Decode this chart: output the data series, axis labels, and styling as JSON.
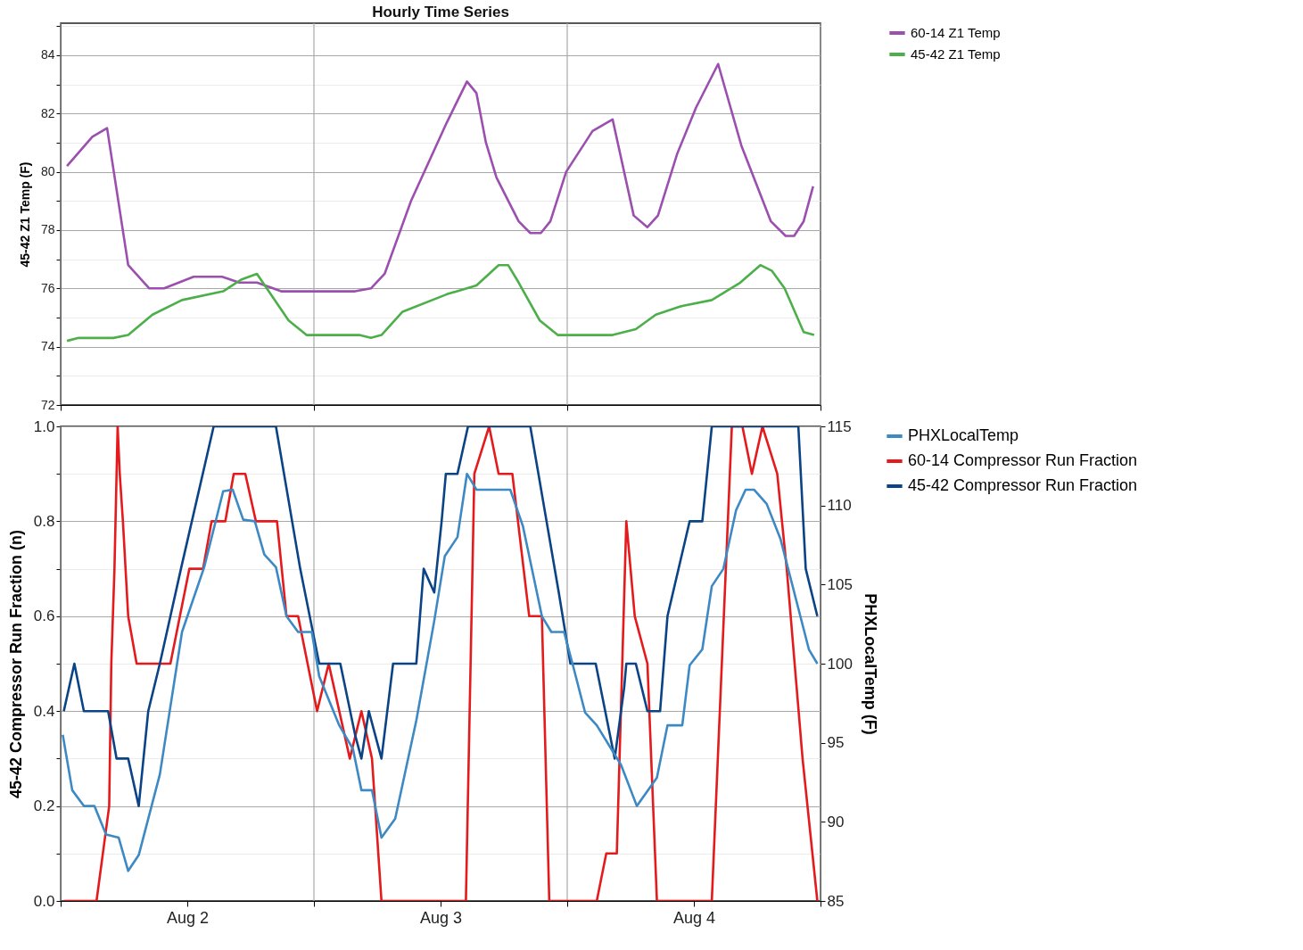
{
  "chart_data": [
    {
      "type": "line",
      "title": "Hourly Time Series",
      "ylabel": "45-42 Z1 Temp (F)",
      "xlim": [
        "--08-02T00:00",
        "--08-05T00:00"
      ],
      "xticks": [
        {
          "value": "--08-02T00:00",
          "label": null
        },
        {
          "value": "--08-03T00:00",
          "label": null
        },
        {
          "value": "--08-04T00:00",
          "label": null
        },
        {
          "value": "--08-05T00:00",
          "label": null
        }
      ],
      "ylim": [
        72,
        85.1
      ],
      "yticks": [
        72,
        {
          "value": 73,
          "label": null
        },
        74,
        {
          "value": 75,
          "label": null
        },
        76,
        {
          "value": 77,
          "label": null
        },
        78,
        {
          "value": 79,
          "label": null
        },
        80,
        {
          "value": 81,
          "label": null
        },
        82,
        {
          "value": 83,
          "label": null
        },
        84,
        {
          "value": 85,
          "label": null
        }
      ],
      "tick_labels": "y",
      "grid": true,
      "legend": "right",
      "series": [
        {
          "name": "60-14 Z1 Temp",
          "color": "#9b4fae",
          "x": [
            "--08-02T00:36",
            "--08-02T03:00",
            "--08-02T04:24",
            "--08-02T06:24",
            "--08-02T08:24",
            "--08-02T09:48",
            "--08-02T12:36",
            "--08-02T15:18",
            "--08-02T16:54",
            "--08-02T18:36",
            "--08-02T20:54",
            "--08-03T03:54",
            "--08-03T05:24",
            "--08-03T06:42",
            "--08-03T09:12",
            "--08-03T12:36",
            "--08-03T14:30",
            "--08-03T15:24",
            "--08-03T16:18",
            "--08-03T17:18",
            "--08-03T19:24",
            "--08-03T20:30",
            "--08-03T21:30",
            "--08-03T22:24",
            "--08-03T23:54",
            "--08-04T02:24",
            "--08-04T04:18",
            "--08-04T06:18",
            "--08-04T07:36",
            "--08-04T08:36",
            "--08-04T10:24",
            "--08-04T12:12",
            "--08-04T14:18",
            "--08-04T16:30",
            "--08-04T19:18",
            "--08-04T20:42",
            "--08-04T21:30",
            "--08-04T22:24",
            "--08-04T23:18"
          ],
          "values": [
            80.2,
            81.2,
            81.5,
            76.8,
            76.0,
            76.0,
            76.4,
            76.4,
            76.2,
            76.2,
            75.9,
            75.9,
            76.0,
            76.5,
            79.0,
            81.7,
            83.1,
            82.7,
            81.0,
            79.8,
            78.3,
            77.9,
            77.9,
            78.3,
            80.0,
            81.4,
            81.8,
            78.5,
            78.1,
            78.5,
            80.6,
            82.2,
            83.7,
            80.9,
            78.3,
            77.8,
            77.8,
            78.3,
            79.5
          ]
        },
        {
          "name": "45-42 Z1 Temp",
          "color": "#4daf4a",
          "x": [
            "--08-02T00:36",
            "--08-02T01:42",
            "--08-02T05:00",
            "--08-02T06:24",
            "--08-02T08:42",
            "--08-02T11:30",
            "--08-02T15:24",
            "--08-02T17:06",
            "--08-02T18:36",
            "--08-02T21:36",
            "--08-02T23:18",
            "--08-03T04:18",
            "--08-03T05:24",
            "--08-03T06:24",
            "--08-03T08:24",
            "--08-03T12:36",
            "--08-03T15:24",
            "--08-03T17:30",
            "--08-03T18:24",
            "--08-03T19:24",
            "--08-03T21:24",
            "--08-03T23:06",
            "--08-04T04:18",
            "--08-04T06:30",
            "--08-04T08:24",
            "--08-04T10:54",
            "--08-04T13:42",
            "--08-04T16:24",
            "--08-04T18:18",
            "--08-04T19:24",
            "--08-04T20:36",
            "--08-04T22:24",
            "--08-04T23:24"
          ],
          "values": [
            74.2,
            74.3,
            74.3,
            74.4,
            75.1,
            75.6,
            75.9,
            76.3,
            76.5,
            74.9,
            74.4,
            74.4,
            74.3,
            74.4,
            75.2,
            75.8,
            76.1,
            76.8,
            76.8,
            76.2,
            74.9,
            74.4,
            74.4,
            74.6,
            75.1,
            75.4,
            75.6,
            76.2,
            76.8,
            76.6,
            76.0,
            74.5,
            74.4
          ]
        }
      ]
    },
    {
      "type": "line",
      "ylabel": "45-42 Compressor Run Fraction (n)",
      "y2label": "PHXLocalTemp (F)",
      "xlim": [
        "--08-02T00:00",
        "--08-05T00:00"
      ],
      "xticks": [
        {
          "value": "--08-02T00:00",
          "label": null
        },
        {
          "value": "--08-02T12:00",
          "label": "Aug 2"
        },
        {
          "value": "--08-03T00:00",
          "label": null
        },
        {
          "value": "--08-03T12:00",
          "label": "Aug 3"
        },
        {
          "value": "--08-04T00:00",
          "label": null
        },
        {
          "value": "--08-04T12:00",
          "label": "Aug 4"
        },
        {
          "value": "--08-05T00:00",
          "label": null
        }
      ],
      "ylim": [
        0,
        1
      ],
      "yticks": [
        {
          "value": 0,
          "label": "0.0"
        },
        {
          "value": 0.1,
          "label": null
        },
        0.2,
        {
          "value": 0.3,
          "label": null
        },
        0.4,
        {
          "value": 0.5,
          "label": null
        },
        0.6,
        {
          "value": 0.7,
          "label": null
        },
        0.8,
        {
          "value": 0.9,
          "label": null
        },
        {
          "value": 1,
          "label": "1.0"
        }
      ],
      "y2lim": [
        85,
        115
      ],
      "y2ticks": [
        85,
        90,
        95,
        100,
        105,
        110,
        115
      ],
      "grid": true,
      "legend": "right",
      "series": [
        {
          "name": "PHXLocalTemp",
          "color": "#3d89c4",
          "axis": "y2",
          "x": [
            "--08-02T00:12",
            "--08-02T01:06",
            "--08-02T02:12",
            "--08-02T03:12",
            "--08-02T04:18",
            "--08-02T05:30",
            "--08-02T06:24",
            "--08-02T07:24",
            "--08-02T09:24",
            "--08-02T11:30",
            "--08-02T13:36",
            "--08-02T15:24",
            "--08-02T16:18",
            "--08-02T17:18",
            "--08-02T18:24",
            "--08-02T19:18",
            "--08-02T20:24",
            "--08-02T21:24",
            "--08-02T22:30",
            "--08-02T23:48",
            "--08-03T00:30",
            "--08-03T02:24",
            "--08-03T03:42",
            "--08-03T04:30",
            "--08-03T05:30",
            "--08-03T06:24",
            "--08-03T07:42",
            "--08-03T09:42",
            "--08-03T11:24",
            "--08-03T12:24",
            "--08-03T13:36",
            "--08-03T14:30",
            "--08-03T15:24",
            "--08-03T18:36",
            "--08-03T19:48",
            "--08-03T21:36",
            "--08-03T22:30",
            "--08-03T23:42",
            "--08-04T00:30",
            "--08-04T01:42",
            "--08-04T02:48",
            "--08-04T05:06",
            "--08-04T06:36",
            "--08-04T08:30",
            "--08-04T09:30",
            "--08-04T10:54",
            "--08-04T11:36",
            "--08-04T12:48",
            "--08-04T13:42",
            "--08-04T14:48",
            "--08-04T16:00",
            "--08-04T16:54",
            "--08-04T17:42",
            "--08-04T18:54",
            "--08-04T20:12",
            "--08-04T22:54",
            "--08-04T23:42"
          ],
          "values": [
            95.5,
            92,
            91,
            91,
            89.2,
            89,
            86.9,
            87.9,
            93,
            102,
            106.1,
            110.9,
            111,
            109.1,
            109,
            106.9,
            106.1,
            103,
            102,
            102,
            99.2,
            96.1,
            94.6,
            92,
            92,
            89,
            90.2,
            96.4,
            102.7,
            106.8,
            108,
            112,
            111,
            111,
            108.7,
            103,
            102,
            102,
            100,
            96.9,
            96.1,
            93.6,
            91,
            92.8,
            96.1,
            96.1,
            99.9,
            100.9,
            104.9,
            106,
            109.7,
            111,
            111,
            110.1,
            107.9,
            100.9,
            100
          ]
        },
        {
          "name": "60-14 Compressor Run Fraction",
          "color": "#e41a1c",
          "x": [
            "--08-02T00:18",
            "--08-02T03:24",
            "--08-02T04:00",
            "--08-02T04:36",
            "--08-02T04:48",
            "--08-02T05:06",
            "--08-02T05:24",
            "--08-02T05:36",
            "--08-02T05:54",
            "--08-02T06:24",
            "--08-02T07:12",
            "--08-02T10:24",
            "--08-02T12:12",
            "--08-02T13:30",
            "--08-02T14:18",
            "--08-02T15:36",
            "--08-02T16:24",
            "--08-02T17:30",
            "--08-02T18:30",
            "--08-02T20:30",
            "--08-02T21:24",
            "--08-02T22:30",
            "--08-03T00:18",
            "--08-03T01:24",
            "--08-03T03:24",
            "--08-03T04:30",
            "--08-03T05:30",
            "--08-03T06:24",
            "--08-03T14:24",
            "--08-03T15:12",
            "--08-03T16:36",
            "--08-03T17:30",
            "--08-03T18:48",
            "--08-03T20:24",
            "--08-03T21:36",
            "--08-03T22:18",
            "--08-04T02:48",
            "--08-04T03:42",
            "--08-04T04:42",
            "--08-04T05:36",
            "--08-04T06:24",
            "--08-04T07:36",
            "--08-04T08:30",
            "--08-04T13:42",
            "--08-04T15:36",
            "--08-04T16:36",
            "--08-04T17:30",
            "--08-04T18:30",
            "--08-04T19:54",
            "--08-04T20:48",
            "--08-04T22:18",
            "--08-04T23:42"
          ],
          "values": [
            0,
            0,
            0.1,
            0.2,
            0.5,
            0.7,
            1,
            0.9,
            0.8,
            0.6,
            0.5,
            0.5,
            0.7,
            0.7,
            0.8,
            0.8,
            0.9,
            0.9,
            0.8,
            0.8,
            0.6,
            0.6,
            0.4,
            0.5,
            0.3,
            0.4,
            0.3,
            0,
            0,
            0.9,
            1,
            0.9,
            0.9,
            0.6,
            0.6,
            0,
            0,
            0.1,
            0.1,
            0.8,
            0.6,
            0.5,
            0,
            0,
            1,
            1,
            0.9,
            1,
            0.9,
            0.7,
            0.3,
            0
          ]
        },
        {
          "name": "45-42 Compressor Run Fraction",
          "color": "#0a4486",
          "x": [
            "--08-02T00:18",
            "--08-02T01:18",
            "--08-02T02:12",
            "--08-02T04:30",
            "--08-02T05:18",
            "--08-02T06:24",
            "--08-02T07:24",
            "--08-02T08:18",
            "--08-02T09:24",
            "--08-02T11:24",
            "--08-02T14:30",
            "--08-02T20:24",
            "--08-02T22:42",
            "--08-03T00:30",
            "--08-03T02:30",
            "--08-03T03:54",
            "--08-03T04:30",
            "--08-03T05:12",
            "--08-03T06:24",
            "--08-03T07:30",
            "--08-03T09:42",
            "--08-03T10:24",
            "--08-03T11:24",
            "--08-03T12:06",
            "--08-03T12:30",
            "--08-03T13:36",
            "--08-03T14:36",
            "--08-03T20:30",
            "--08-03T23:12",
            "--08-04T00:18",
            "--08-04T02:42",
            "--08-04T04:30",
            "--08-04T05:24",
            "--08-04T05:36",
            "--08-04T06:30",
            "--08-04T07:36",
            "--08-04T08:48",
            "--08-04T09:30",
            "--08-04T11:36",
            "--08-04T12:48",
            "--08-04T13:42",
            "--08-04T21:54",
            "--08-04T22:36",
            "--08-04T23:42"
          ],
          "values": [
            0.4,
            0.5,
            0.4,
            0.4,
            0.3,
            0.3,
            0.2,
            0.4,
            0.5,
            0.7,
            1,
            1,
            0.7,
            0.5,
            0.5,
            0.35,
            0.3,
            0.4,
            0.3,
            0.5,
            0.5,
            0.7,
            0.65,
            0.8,
            0.9,
            0.9,
            1,
            1,
            0.65,
            0.5,
            0.5,
            0.3,
            0.45,
            0.5,
            0.5,
            0.4,
            0.4,
            0.6,
            0.8,
            0.8,
            1,
            1,
            0.7,
            0.6
          ]
        }
      ]
    }
  ]
}
